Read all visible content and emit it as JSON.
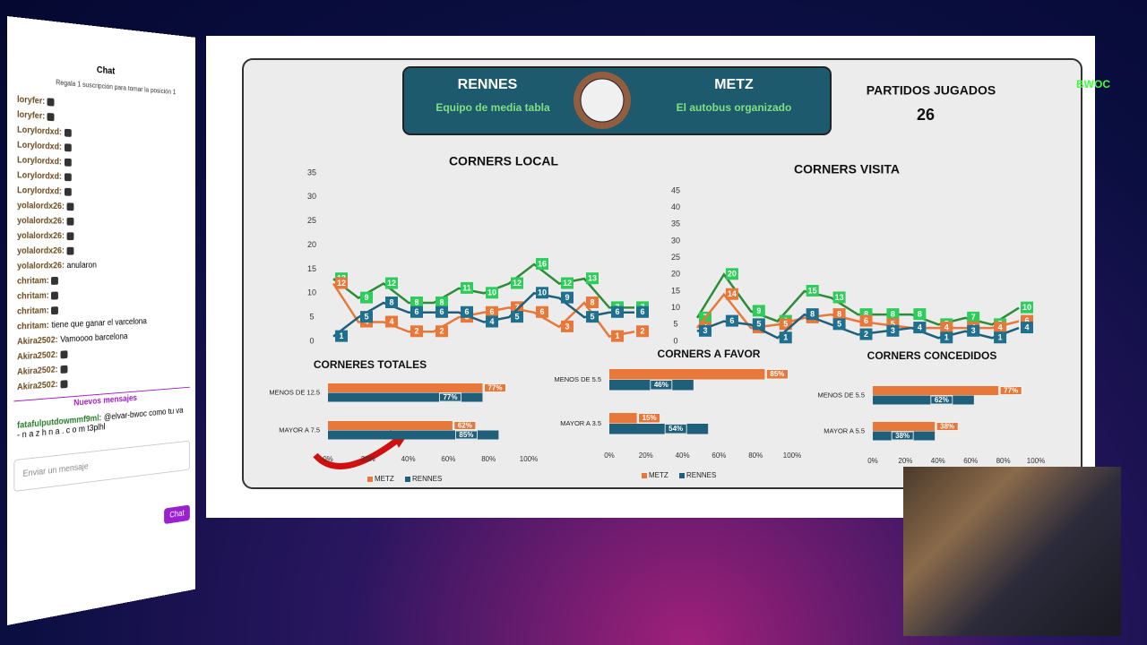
{
  "header": {
    "home": {
      "name": "RENNES",
      "tagline": "Equipo de media tabla"
    },
    "away": {
      "name": "METZ",
      "tagline": "El autobus organizado"
    },
    "played_label": "PARTIDOS JUGADOS",
    "played": "26"
  },
  "logo": "BWOC",
  "chart_data": [
    {
      "type": "line",
      "title": "CORNERS LOCAL",
      "ylim": [
        0,
        35
      ],
      "yticks": [
        0,
        5,
        10,
        15,
        20,
        25,
        30,
        35
      ],
      "series": [
        {
          "color": "#2e8b3a",
          "label_color": "#2ecc5a",
          "values": [
            13,
            9,
            12,
            8,
            8,
            11,
            10,
            12,
            16,
            12,
            13,
            7,
            7
          ]
        },
        {
          "color": "#e8773a",
          "label_color": "#e8773a",
          "values": [
            12,
            4,
            4,
            2,
            2,
            5,
            6,
            7,
            6,
            3,
            8,
            1,
            2
          ]
        },
        {
          "color": "#1f5f7a",
          "label_color": "#1f6f8f",
          "values": [
            1,
            5,
            8,
            6,
            6,
            6,
            4,
            5,
            10,
            9,
            5,
            6,
            6
          ]
        }
      ]
    },
    {
      "type": "line",
      "title": "CORNERS VISITA",
      "ylim": [
        0,
        45
      ],
      "yticks": [
        0,
        5,
        10,
        15,
        20,
        25,
        30,
        35,
        40,
        45
      ],
      "series": [
        {
          "color": "#2e8b3a",
          "label_color": "#2ecc5a",
          "values": [
            7,
            20,
            9,
            6,
            15,
            13,
            8,
            8,
            8,
            5,
            7,
            5,
            10
          ]
        },
        {
          "color": "#e8773a",
          "label_color": "#e8773a",
          "values": [
            4,
            14,
            4,
            5,
            7,
            8,
            6,
            5,
            4,
            4,
            4,
            4,
            6
          ]
        },
        {
          "color": "#1f5f7a",
          "label_color": "#1f6f8f",
          "values": [
            3,
            6,
            5,
            1,
            8,
            5,
            2,
            3,
            4,
            1,
            3,
            1,
            4
          ]
        }
      ]
    },
    {
      "type": "hbar",
      "title": "CORNERES TOTALES",
      "categories": [
        "MENOS DE 12.5",
        "MAYOR A 7.5"
      ],
      "legend": true,
      "xlim": [
        0,
        100
      ],
      "xticks": [
        {
          "value": 0,
          "label": "0%"
        },
        {
          "value": 20,
          "label": "20%"
        },
        {
          "value": 40,
          "label": "40%"
        },
        {
          "value": 60,
          "label": "60%"
        },
        {
          "value": 80,
          "label": "80%"
        },
        {
          "value": 100,
          "label": "100%"
        }
      ],
      "series": [
        {
          "name": "METZ",
          "color": "#e8773a",
          "values": [
            77,
            62
          ],
          "value_labels": [
            "77%",
            "62%"
          ]
        },
        {
          "name": "RENNES",
          "color": "#1f5f7a",
          "values": [
            77,
            85
          ],
          "value_labels": [
            "77%",
            "85%"
          ]
        }
      ]
    },
    {
      "type": "hbar",
      "title": "CORNERS A FAVOR",
      "categories": [
        "MENOS DE 5.5",
        "MAYOR A 3.5"
      ],
      "legend": true,
      "xlim": [
        0,
        100
      ],
      "xticks": [
        {
          "value": 0,
          "label": "0%"
        },
        {
          "value": 20,
          "label": "20%"
        },
        {
          "value": 40,
          "label": "40%"
        },
        {
          "value": 60,
          "label": "60%"
        },
        {
          "value": 80,
          "label": "80%"
        },
        {
          "value": 100,
          "label": "100%"
        }
      ],
      "series": [
        {
          "name": "METZ",
          "color": "#e8773a",
          "values": [
            85,
            15
          ],
          "value_labels": [
            "85%",
            "15%"
          ]
        },
        {
          "name": "RENNES",
          "color": "#1f5f7a",
          "values": [
            46,
            54
          ],
          "value_labels": [
            "46%",
            "54%"
          ]
        }
      ]
    },
    {
      "type": "hbar",
      "title": "CORNERS CONCEDIDOS",
      "categories": [
        "MENOS DE 5.5",
        "MAYOR A 5.5"
      ],
      "legend": false,
      "xlim": [
        0,
        100
      ],
      "xticks": [
        {
          "value": 0,
          "label": "0%"
        },
        {
          "value": 20,
          "label": "20%"
        },
        {
          "value": 40,
          "label": "40%"
        },
        {
          "value": 60,
          "label": "60%"
        },
        {
          "value": 80,
          "label": "80%"
        },
        {
          "value": 100,
          "label": "100%"
        }
      ],
      "series": [
        {
          "name": "METZ",
          "color": "#e8773a",
          "values": [
            77,
            38
          ],
          "value_labels": [
            "77%",
            "38%"
          ]
        },
        {
          "name": "RENNES",
          "color": "#1f5f7a",
          "values": [
            62,
            38
          ],
          "value_labels": [
            "62%",
            "38%"
          ]
        }
      ]
    }
  ],
  "chat": {
    "title": "Chat",
    "promo": "Regala 1 suscripción para tomar la posición 1",
    "messages": [
      {
        "user": "loryfer:"
      },
      {
        "user": "loryfer:"
      },
      {
        "user": "Lorylordxd:"
      },
      {
        "user": "Lorylordxd:"
      },
      {
        "user": "Lorylordxd:"
      },
      {
        "user": "Lorylordxd:"
      },
      {
        "user": "Lorylordxd:"
      },
      {
        "user": "yolalordx26:"
      },
      {
        "user": "yolalordx26:"
      },
      {
        "user": "yolalordx26:"
      },
      {
        "user": "yolalordx26:"
      },
      {
        "user": "yolalordx26:",
        "text": "anularon"
      },
      {
        "user": "chritam:"
      },
      {
        "user": "chritam:"
      },
      {
        "user": "chritam:"
      },
      {
        "user": "chritam:",
        "text": "tiene que ganar el varcelona"
      },
      {
        "user": "Akira2502:",
        "text": "Vamoooo barcelona"
      },
      {
        "user": "Akira2502:"
      },
      {
        "user": "Akira2502:"
      },
      {
        "user": "Akira2502:"
      }
    ],
    "new_messages": "Nuevos mensajes",
    "last": {
      "user": "fatafulputdowmmf9ml:",
      "text": "@elvar-bwoc como tu va - n a z h n a . c o m t3plhl"
    },
    "placeholder": "Enviar un mensaje",
    "send": "Chat"
  }
}
